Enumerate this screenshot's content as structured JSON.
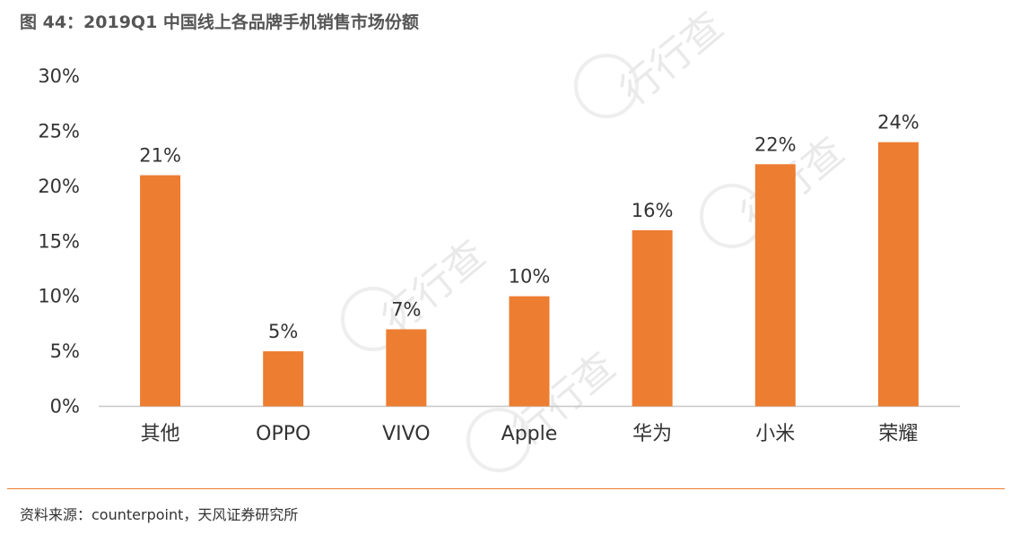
{
  "figure": {
    "title": "图 44：2019Q1 中国线上各品牌手机销售市场份额",
    "source": "资料来源：counterpoint，天风证券研究所"
  },
  "chart_data": {
    "type": "bar",
    "categories": [
      "其他",
      "OPPO",
      "VIVO",
      "Apple",
      "华为",
      "小米",
      "荣耀"
    ],
    "values": [
      21,
      5,
      7,
      10,
      16,
      22,
      24
    ],
    "data_labels": [
      "21%",
      "5%",
      "7%",
      "10%",
      "16%",
      "22%",
      "24%"
    ],
    "ylim": [
      0,
      30
    ],
    "yticks": [
      0,
      5,
      10,
      15,
      20,
      25,
      30
    ],
    "ytick_labels": [
      "0%",
      "5%",
      "10%",
      "15%",
      "20%",
      "25%",
      "30%"
    ],
    "bar_color": "#ED7D31",
    "grid": false,
    "legend": "none"
  },
  "colors": {
    "accent": "#ED7D31",
    "text": "#333333"
  },
  "watermark": {
    "text": "行行查"
  }
}
